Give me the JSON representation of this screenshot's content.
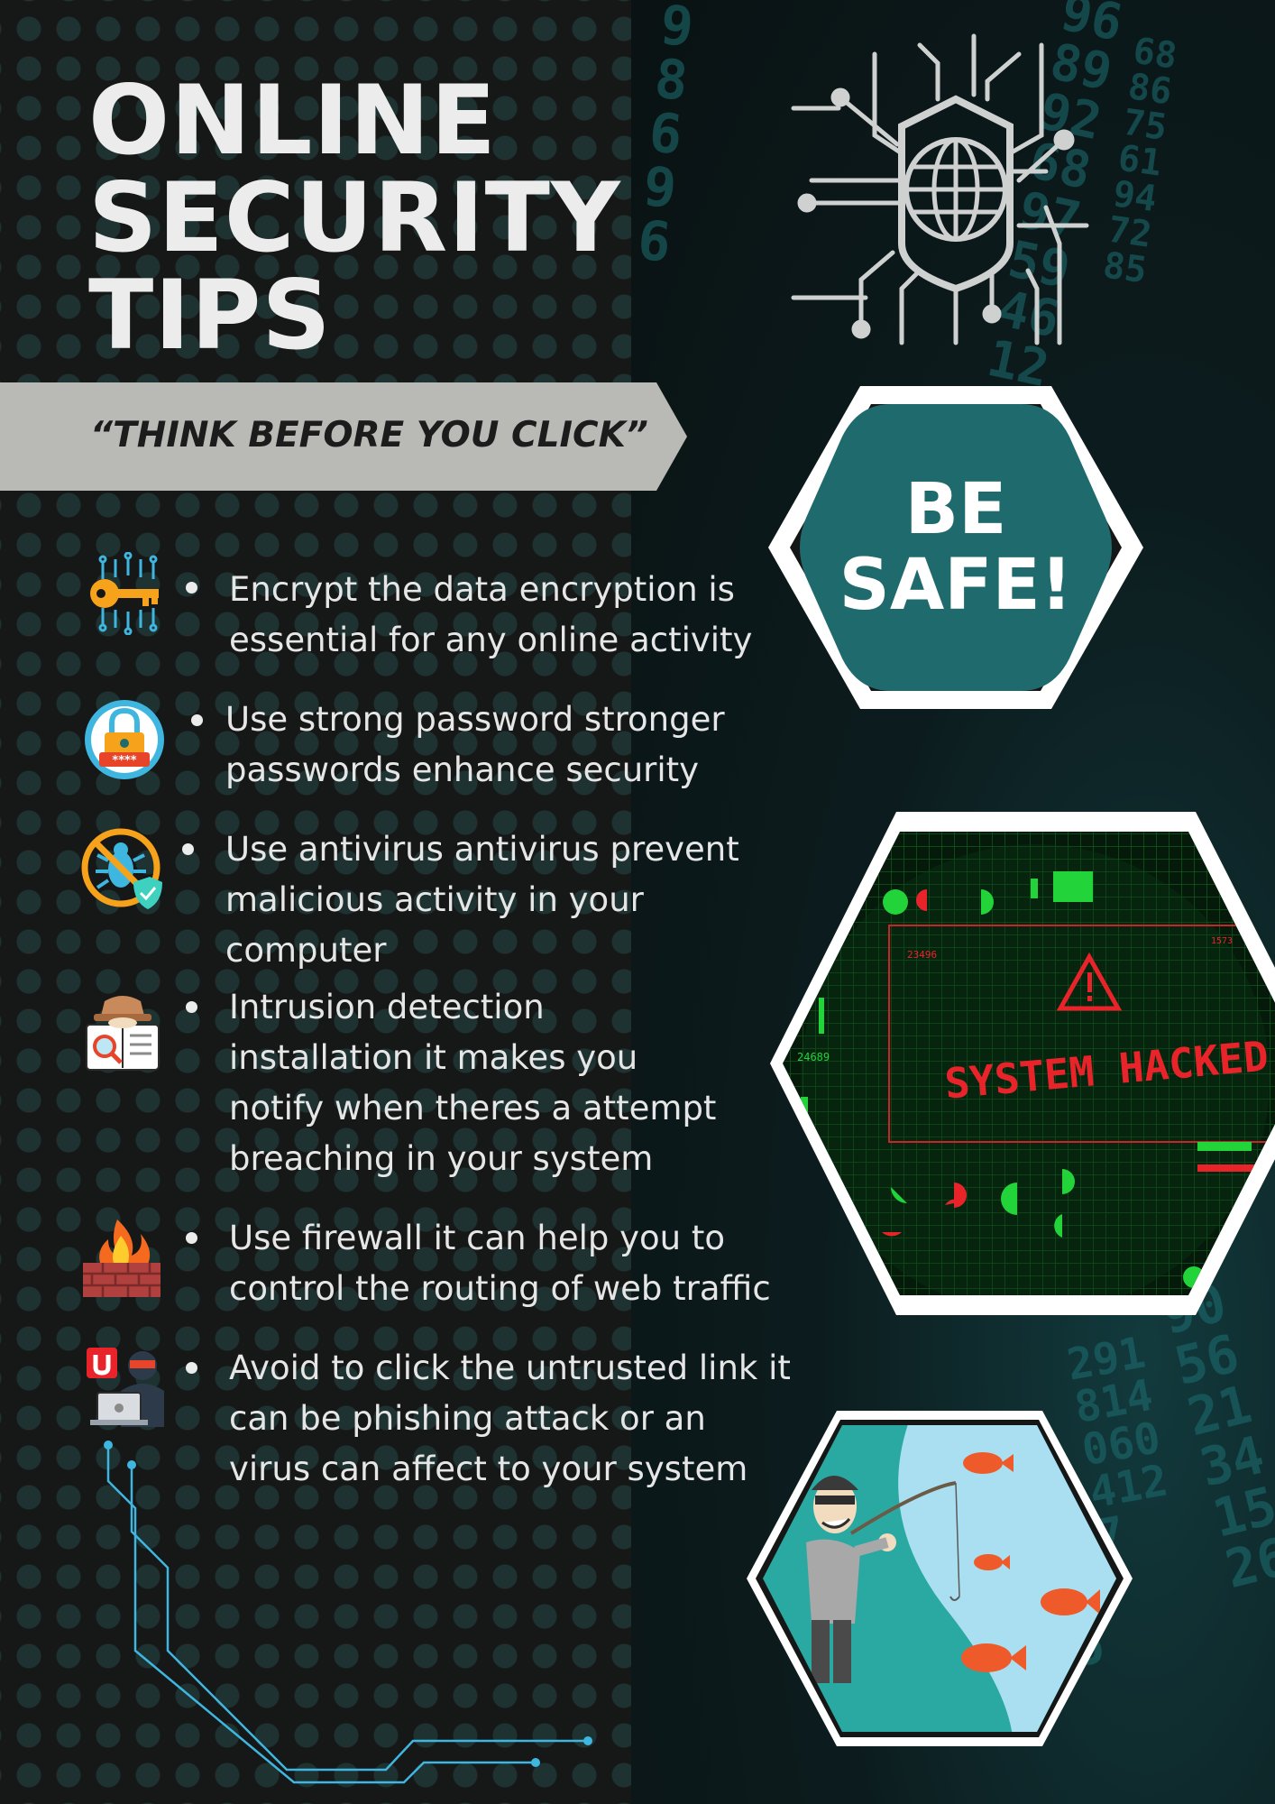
{
  "header": {
    "title_lines": [
      "ONLINE",
      "SECURITY",
      "TIPS"
    ]
  },
  "banner": {
    "slogan": "“THINK BEFORE YOU CLICK”"
  },
  "badge": {
    "line1": "BE",
    "line2": "SAFE!"
  },
  "hacked_image": {
    "label": "SYSTEM HACKED",
    "code_left": "23496",
    "code_right": "1573",
    "code_side": "24689"
  },
  "tips": [
    {
      "icon": "encryption-key-icon",
      "lines": [
        "Encrypt the data encryption is",
        "essential for any online activity"
      ]
    },
    {
      "icon": "password-lock-icon",
      "lines": [
        "Use strong password stronger",
        "passwords enhance security"
      ]
    },
    {
      "icon": "antivirus-bug-icon",
      "lines": [
        "Use antivirus antivirus prevent",
        "malicious activity in your",
        "computer"
      ]
    },
    {
      "icon": "intrusion-detective-icon",
      "lines": [
        "Intrusion detection",
        "installation it makes you",
        "notify when theres a attempt",
        "breaching in your system"
      ]
    },
    {
      "icon": "firewall-icon",
      "lines": [
        "Use firewall it can help you to",
        "control the routing of web traffic"
      ]
    },
    {
      "icon": "phishing-hacker-icon",
      "lines": [
        "Avoid to click the untrusted link it",
        "can be phishing attack or an",
        "virus can affect to your system"
      ]
    }
  ],
  "colors": {
    "accent_teal": "#1e6a6c",
    "banner_gray": "#b9bab6",
    "text_light": "#e6e6e6",
    "circuit_blue": "#3fb6e0",
    "alert_red": "#e8242a",
    "matrix_green": "#22d43a"
  }
}
